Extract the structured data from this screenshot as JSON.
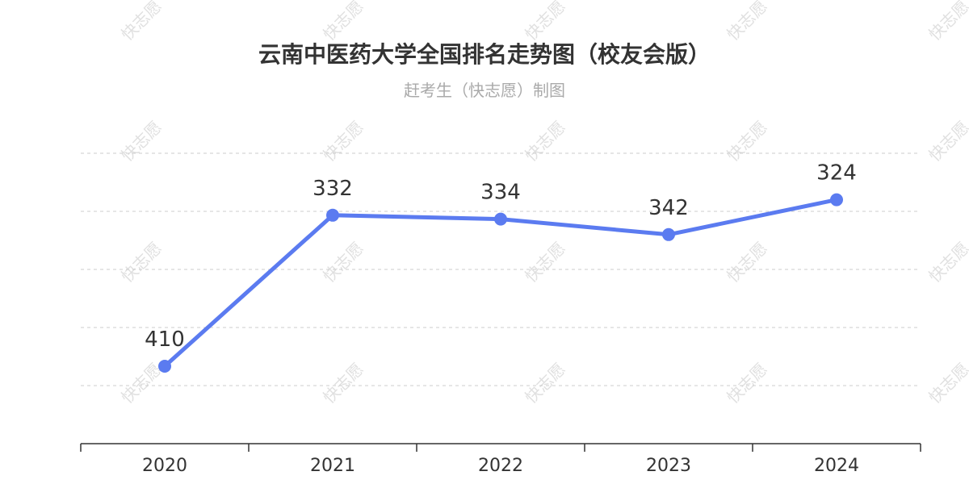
{
  "title": "云南中医药大学全国排名走势图（校友会版）",
  "subtitle": "赶考生（快志愿）制图",
  "watermark": "快志愿",
  "colors": {
    "line": "#5b7bf0",
    "grid": "#cccccc",
    "axis": "#333333"
  },
  "chart_data": {
    "type": "line",
    "categories": [
      "2020",
      "2021",
      "2022",
      "2023",
      "2024"
    ],
    "series": [
      {
        "values": [
          410,
          332,
          334,
          342,
          324
        ]
      }
    ],
    "data_labels": [
      "410",
      "332",
      "334",
      "342",
      "324"
    ],
    "y_axis": {
      "inverted": true,
      "ylim": [
        300,
        450
      ],
      "visible_labels": false
    },
    "grid": true,
    "legend": "none"
  }
}
